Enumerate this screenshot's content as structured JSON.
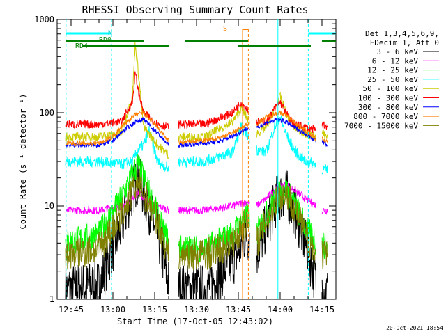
{
  "chart_data": {
    "type": "line",
    "title": "RHESSI Observing Summary Count Rates",
    "xlabel": "Start Time (17-Oct-05 12:43:02)",
    "ylabel": "Count Rate (s⁻¹ detector⁻¹)",
    "yscale": "log",
    "ylim": [
      1,
      1000
    ],
    "xlim_minutes": [
      -3,
      97
    ],
    "x_ticks": [
      {
        "m": 2,
        "label": "12:45"
      },
      {
        "m": 17,
        "label": "13:00"
      },
      {
        "m": 32,
        "label": "13:15"
      },
      {
        "m": 47,
        "label": "13:30"
      },
      {
        "m": 62,
        "label": "13:45"
      },
      {
        "m": 77,
        "label": "14:00"
      },
      {
        "m": 92,
        "label": "14:15"
      }
    ],
    "y_ticks": [
      {
        "v": 1,
        "label": "1"
      },
      {
        "v": 10,
        "label": "10"
      },
      {
        "v": 100,
        "label": "100"
      },
      {
        "v": 1000,
        "label": "1000"
      }
    ],
    "legend_position": "right",
    "legend_header": [
      "Det 1,3,4,5,6,9,",
      "FDecim 1, Att 0"
    ],
    "footer_date": "20-Oct-2021 18:54",
    "flag_labels": {
      "n": "N",
      "rd0": "RD0",
      "rd4": "RD4",
      "s": "S"
    },
    "night_boundaries": [
      0.2,
      16.5,
      87.1
    ],
    "saa_markers": [
      63.5,
      65.6
    ],
    "gaps": [
      [
        37,
        40.5
      ],
      [
        66,
        68.5
      ],
      [
        90,
        92
      ]
    ],
    "series": [
      {
        "name": "3 - 6 keV",
        "color": "#000000",
        "t": [
          0,
          12,
          20,
          24,
          26,
          28,
          33,
          37,
          40.5,
          50,
          60,
          65,
          68.5,
          72,
          76,
          79,
          82,
          86,
          90,
          92,
          94
        ],
        "v": [
          1.3,
          1.4,
          6,
          14,
          20,
          14,
          5,
          1.5,
          1.3,
          1.3,
          2.5,
          5,
          3,
          6,
          12,
          14,
          9,
          4,
          1.5,
          1.3,
          1.2
        ]
      },
      {
        "name": "6 - 12 keV",
        "color": "#ff00ff",
        "t": [
          0,
          12,
          20,
          24,
          26,
          28,
          33,
          37,
          40.5,
          50,
          60,
          65,
          68.5,
          72,
          76,
          79,
          82,
          86,
          90,
          92,
          94
        ],
        "v": [
          9,
          9,
          10,
          12,
          14,
          12,
          10,
          9,
          9,
          9,
          10,
          11,
          10,
          12,
          16,
          17,
          15,
          12,
          10,
          9,
          9
        ]
      },
      {
        "name": "12 - 25 keV",
        "color": "#00ff00",
        "t": [
          0,
          12,
          20,
          24,
          26,
          28,
          33,
          37,
          40.5,
          50,
          60,
          65,
          68.5,
          72,
          76,
          79,
          82,
          86,
          90,
          92,
          94
        ],
        "v": [
          4,
          5,
          12,
          22,
          28,
          20,
          8,
          4,
          3.5,
          3.5,
          5,
          8,
          5,
          8,
          13,
          15,
          11,
          6,
          4,
          4,
          3.5
        ]
      },
      {
        "name": "25 - 50 keV",
        "color": "#00ffff",
        "t": [
          0,
          12,
          20,
          24,
          26,
          28,
          30,
          33,
          37,
          40.5,
          50,
          60,
          63,
          65,
          68.5,
          72,
          75,
          77,
          79,
          82,
          86,
          90,
          92,
          94
        ],
        "v": [
          30,
          30,
          28,
          30,
          40,
          45,
          65,
          30,
          25,
          30,
          30,
          38,
          70,
          60,
          40,
          38,
          70,
          90,
          60,
          40,
          30,
          28,
          25,
          24
        ]
      },
      {
        "name": "50 - 100 keV",
        "color": "#cccc00",
        "t": [
          0,
          12,
          20,
          24,
          25,
          26,
          28,
          33,
          37,
          40.5,
          50,
          60,
          63,
          65,
          68.5,
          72,
          75,
          77,
          79,
          82,
          86,
          90,
          92,
          94
        ],
        "v": [
          55,
          55,
          60,
          150,
          550,
          300,
          70,
          45,
          35,
          55,
          55,
          80,
          110,
          90,
          60,
          70,
          110,
          150,
          100,
          70,
          60,
          55,
          60,
          55
        ]
      },
      {
        "name": "100 - 300 keV",
        "color": "#ff0000",
        "t": [
          0,
          12,
          20,
          24,
          25,
          26,
          28,
          33,
          37,
          40.5,
          50,
          60,
          63,
          65,
          68.5,
          72,
          75,
          77,
          79,
          82,
          86,
          90,
          92,
          94
        ],
        "v": [
          75,
          75,
          80,
          130,
          270,
          180,
          100,
          75,
          70,
          75,
          75,
          100,
          130,
          110,
          80,
          80,
          110,
          130,
          100,
          75,
          70,
          65,
          75,
          70
        ]
      },
      {
        "name": "300 - 800 keV",
        "color": "#0000ff",
        "t": [
          0,
          12,
          17,
          21,
          25,
          28,
          32,
          37,
          40.5,
          50,
          56,
          62,
          65,
          68.5,
          72,
          76,
          79,
          82,
          86,
          90,
          92,
          94
        ],
        "v": [
          45,
          45,
          50,
          65,
          80,
          85,
          65,
          45,
          45,
          47,
          50,
          60,
          68,
          68,
          78,
          85,
          80,
          70,
          60,
          50,
          50,
          45
        ]
      },
      {
        "name": "800 - 7000 keV",
        "color": "#ff8000",
        "t": [
          0,
          12,
          17,
          21,
          25,
          28,
          32,
          37,
          40.5,
          50,
          56,
          62,
          65,
          68.5,
          72,
          76,
          79,
          82,
          86,
          90,
          92,
          94
        ],
        "v": [
          47,
          47,
          55,
          75,
          95,
          100,
          75,
          50,
          48,
          50,
          55,
          65,
          75,
          75,
          90,
          100,
          95,
          80,
          65,
          52,
          52,
          48
        ]
      },
      {
        "name": "7000 - 15000 keV",
        "color": "#808000",
        "t": [
          0,
          12,
          20,
          24,
          26,
          28,
          33,
          37,
          40.5,
          50,
          60,
          65,
          68.5,
          72,
          76,
          79,
          82,
          86,
          90,
          92,
          94
        ],
        "v": [
          3,
          3.5,
          8,
          14,
          18,
          14,
          7,
          3,
          3,
          3,
          4,
          7,
          4,
          7,
          12,
          14,
          10,
          5,
          3,
          3,
          3
        ]
      }
    ],
    "flag_bars": [
      {
        "name": "N",
        "color": "#00ffff",
        "segments": [
          [
            0.2,
            16.5
          ],
          [
            87.1,
            97
          ]
        ]
      },
      {
        "name": "RD0",
        "color": "#008000",
        "segments": [
          [
            0.2,
            28
          ],
          [
            43,
            65.5
          ],
          [
            92,
            97
          ]
        ]
      },
      {
        "name": "RD4",
        "color": "#008000",
        "segments": [
          [
            6,
            37
          ],
          [
            62,
            88
          ]
        ]
      }
    ]
  }
}
